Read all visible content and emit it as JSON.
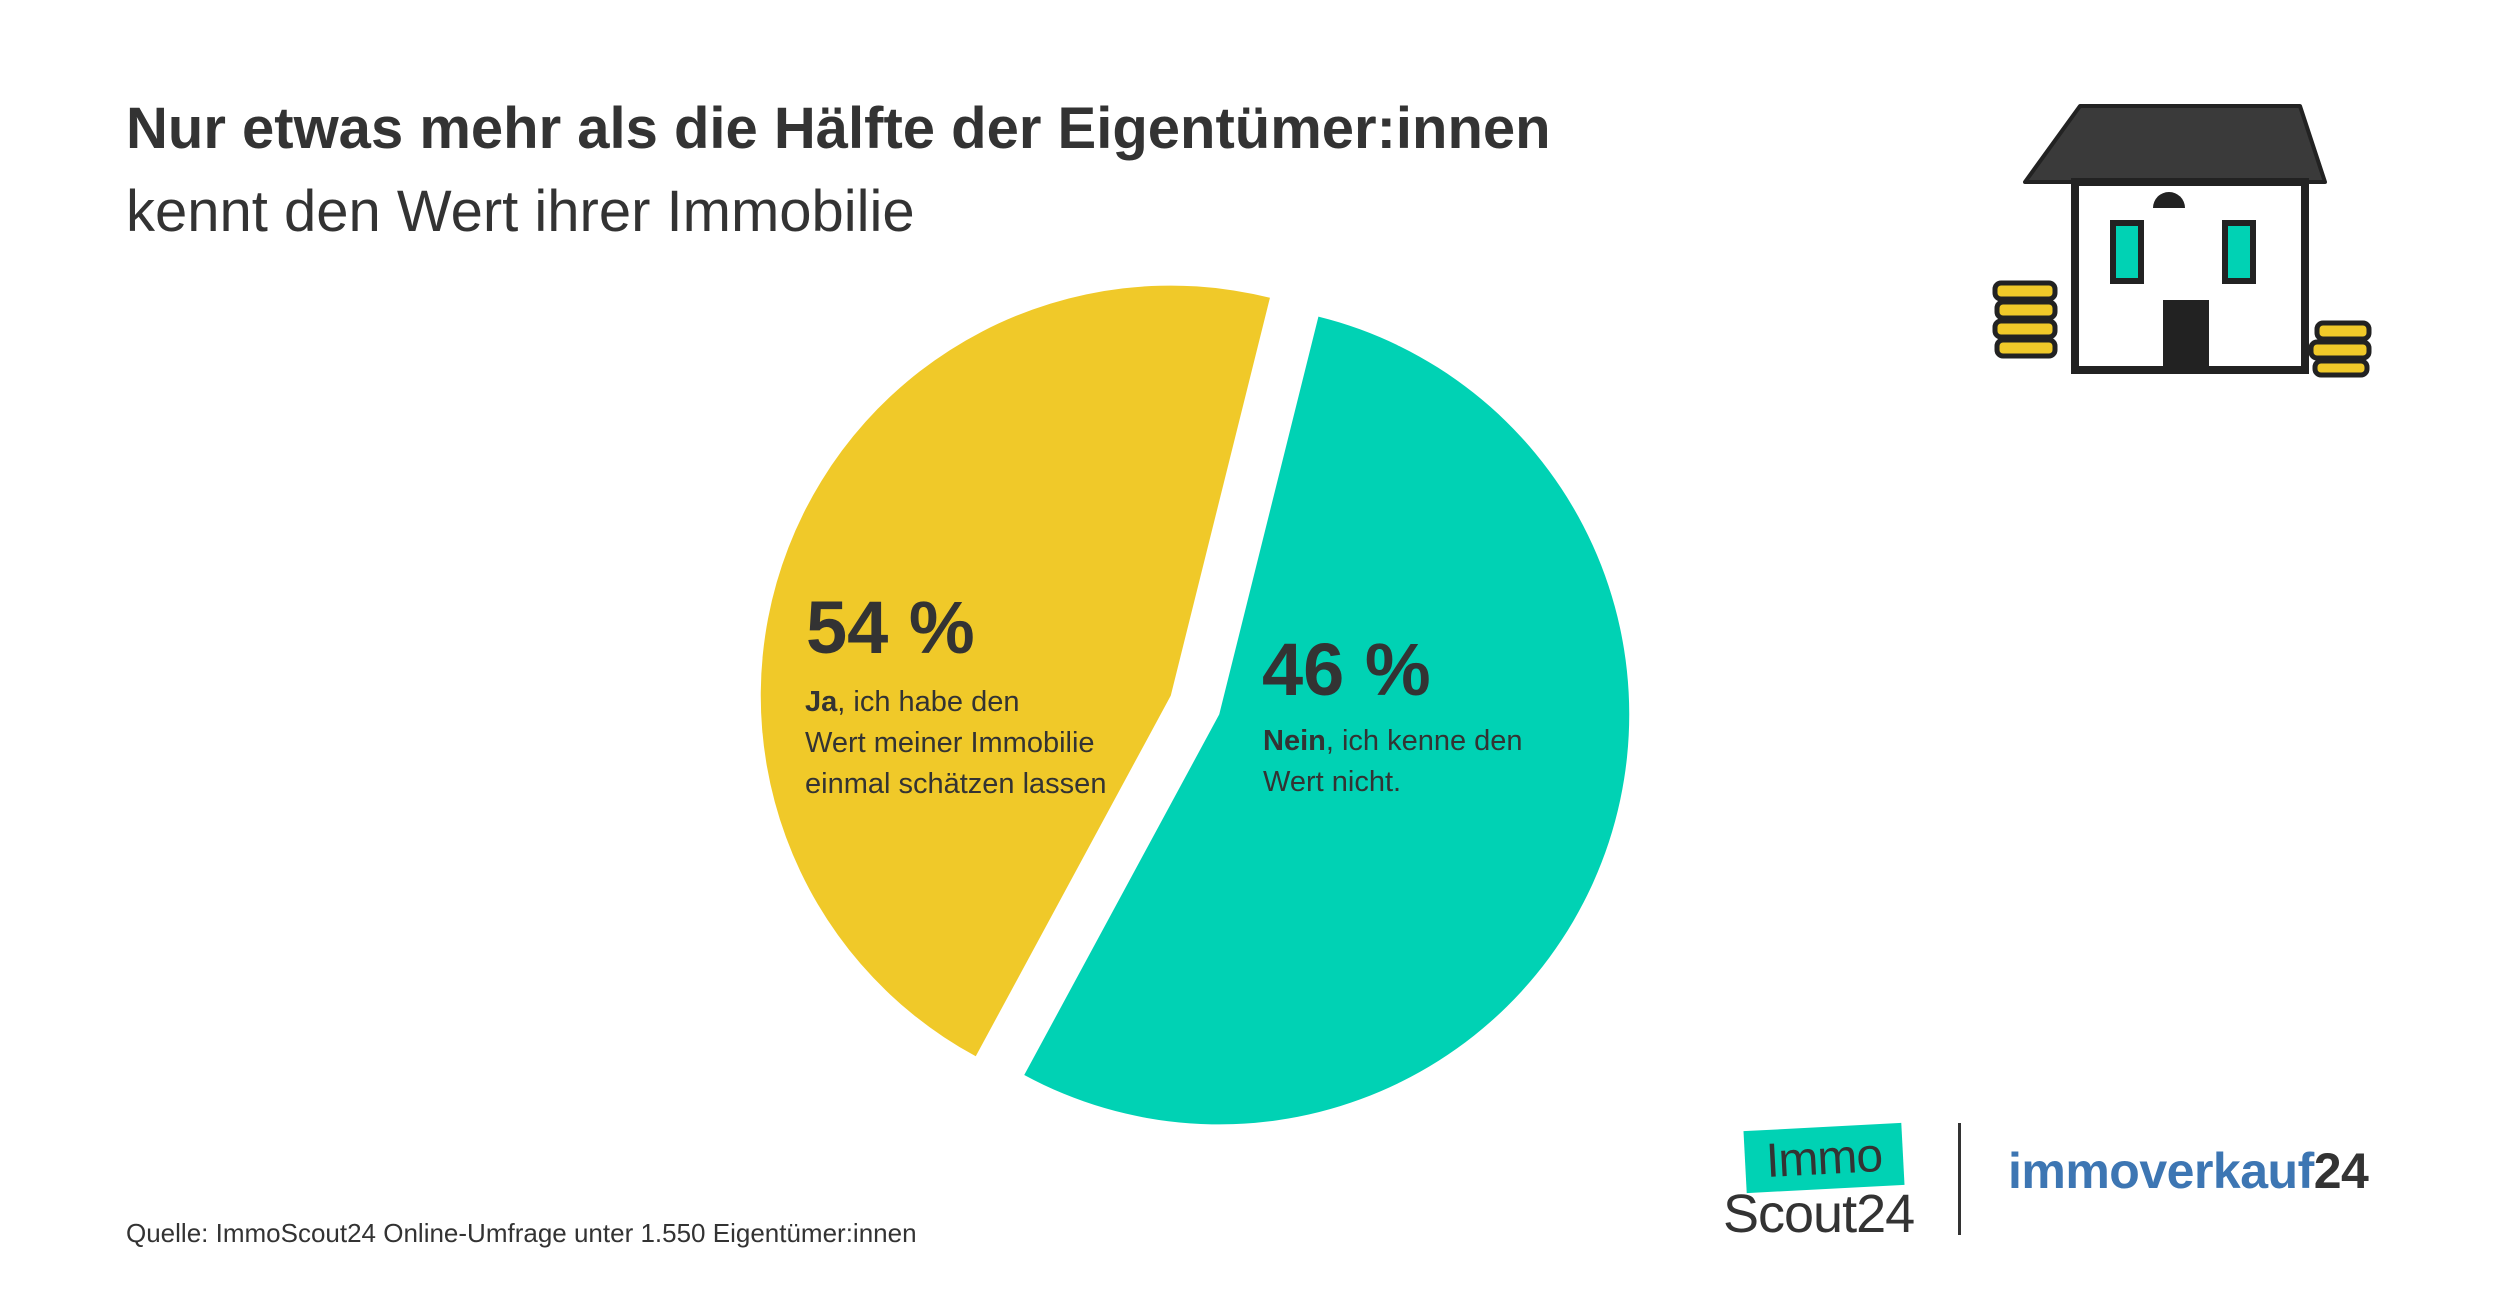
{
  "title": {
    "bold": "Nur etwas mehr als die Hälfte der Eigentümer:innen",
    "light": "kennt den Wert ihrer Immobilie"
  },
  "chart_data": {
    "type": "pie",
    "title": "Nur etwas mehr als die Hälfte der Eigentümer:innen kennt den Wert ihrer Immobilie",
    "slices": [
      {
        "label": "Ja, ich habe den Wert meiner Immobilie einmal schätzen lassen",
        "value": 54,
        "display": "54 %",
        "color": "#00d2b4",
        "bold_part": "Ja",
        "lines": [
          ", ich habe den",
          "Wert meiner Immobilie",
          "einmal schätzen lassen"
        ]
      },
      {
        "label": "Nein, ich kenne den Wert nicht.",
        "value": 46,
        "display": "46 %",
        "color": "#f0c929",
        "bold_part": "Nein",
        "lines": [
          ", ich kenne den",
          "Wert nicht."
        ]
      }
    ]
  },
  "source": "Quelle: ImmoScout24 Online-Umfrage unter 1.550 Eigentümer:innen",
  "logos": {
    "immoscout_top": "Immo",
    "immoscout_bottom": "Scout24",
    "immoverkauf_main": "immoverkauf",
    "immoverkauf_num": "24"
  },
  "colors": {
    "text": "#333333",
    "teal": "#00d2b4",
    "yellow": "#f0c929",
    "blue": "#3d76b3"
  },
  "illustration_icon": "house-with-coins-icon"
}
